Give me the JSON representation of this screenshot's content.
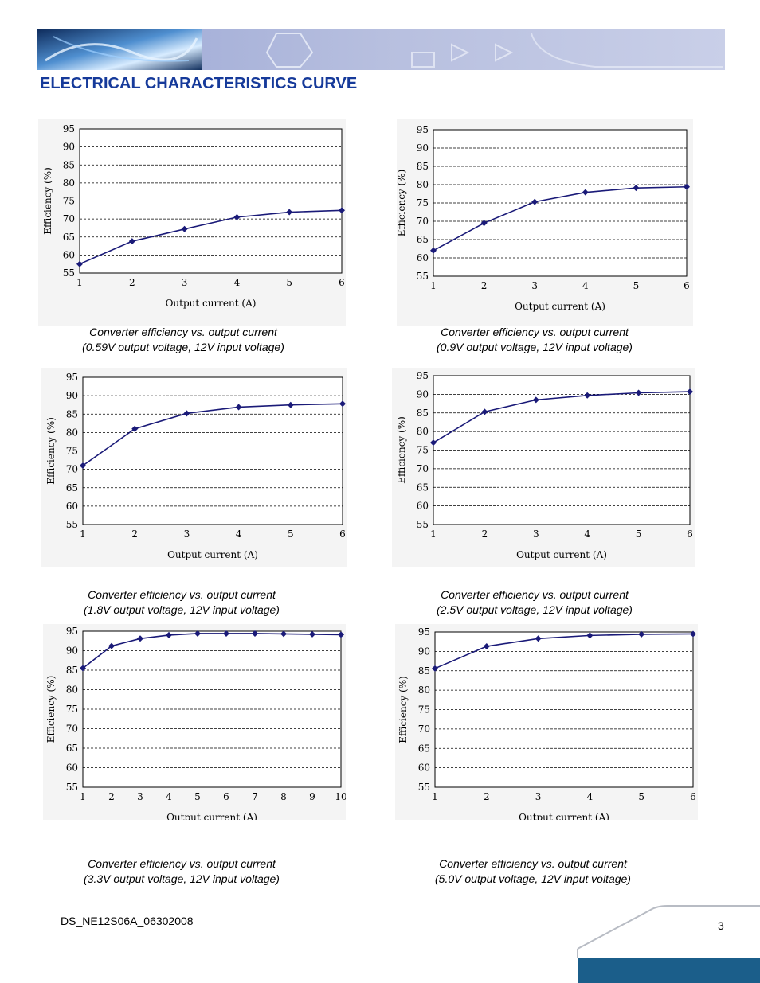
{
  "header": {
    "title": "ELECTRICAL CHARACTERISTICS CURVE"
  },
  "footer": {
    "doc_code": "DS_NE12S06A_06302008",
    "page_number": "3"
  },
  "colors": {
    "heading": "#163a9a",
    "series": "#1a1a78",
    "banner": "#aab4d8",
    "footer_bar": "#1b5e8a"
  },
  "chart_data": [
    {
      "type": "line",
      "caption_line1": "Converter efficiency vs. output current",
      "caption_line2": "(0.59V output voltage, 12V input voltage)",
      "xlabel": "Output current (A)",
      "ylabel": "Efficiency (%)",
      "xlim": [
        1,
        6
      ],
      "ylim": [
        55,
        95
      ],
      "x_ticks": [
        1,
        2,
        3,
        4,
        5,
        6
      ],
      "y_ticks": [
        55,
        60,
        65,
        70,
        75,
        80,
        85,
        90,
        95
      ],
      "grid": "horizontal dashed",
      "x": [
        1,
        2,
        3,
        4,
        5,
        6
      ],
      "series": [
        {
          "values": [
            57.5,
            63.8,
            67.2,
            70.5,
            71.9,
            72.4
          ]
        }
      ]
    },
    {
      "type": "line",
      "caption_line1": "Converter efficiency vs. output current",
      "caption_line2": "(0.9V output voltage, 12V input voltage)",
      "xlabel": "Output current (A)",
      "ylabel": "Efficiency (%)",
      "xlim": [
        1,
        6
      ],
      "ylim": [
        55,
        95
      ],
      "x_ticks": [
        1,
        2,
        3,
        4,
        5,
        6
      ],
      "y_ticks": [
        55,
        60,
        65,
        70,
        75,
        80,
        85,
        90,
        95
      ],
      "grid": "horizontal dashed",
      "x": [
        1,
        2,
        3,
        4,
        5,
        6
      ],
      "series": [
        {
          "values": [
            62,
            69.5,
            75.3,
            77.9,
            79.1,
            79.4
          ]
        }
      ]
    },
    {
      "type": "line",
      "caption_line1": "Converter efficiency vs. output current",
      "caption_line2": "(1.8V output voltage, 12V input voltage)",
      "xlabel": "Output current (A)",
      "ylabel": "Efficiency (%)",
      "xlim": [
        1,
        6
      ],
      "ylim": [
        55,
        95
      ],
      "x_ticks": [
        1,
        2,
        3,
        4,
        5,
        6
      ],
      "y_ticks": [
        55,
        60,
        65,
        70,
        75,
        80,
        85,
        90,
        95
      ],
      "grid": "horizontal dashed",
      "x": [
        1,
        2,
        3,
        4,
        5,
        6
      ],
      "series": [
        {
          "values": [
            71,
            81,
            85.2,
            86.9,
            87.5,
            87.8
          ]
        }
      ]
    },
    {
      "type": "line",
      "caption_line1": "Converter efficiency vs. output current",
      "caption_line2": "(2.5V output voltage, 12V input voltage)",
      "xlabel": "Output current (A)",
      "ylabel": "Efficiency (%)",
      "xlim": [
        1,
        6
      ],
      "ylim": [
        55,
        95
      ],
      "x_ticks": [
        1,
        2,
        3,
        4,
        5,
        6
      ],
      "y_ticks": [
        55,
        60,
        65,
        70,
        75,
        80,
        85,
        90,
        95
      ],
      "grid": "horizontal dashed",
      "x": [
        1,
        2,
        3,
        4,
        5,
        6
      ],
      "series": [
        {
          "values": [
            77,
            85.3,
            88.5,
            89.7,
            90.4,
            90.7
          ]
        }
      ]
    },
    {
      "type": "line",
      "caption_line1": "Converter efficiency vs. output current",
      "caption_line2": "(3.3V output voltage, 12V input voltage)",
      "xlabel": "Output current (A)",
      "ylabel": "Efficiency (%)",
      "xlim": [
        1,
        10
      ],
      "ylim": [
        55,
        95
      ],
      "x_ticks": [
        1,
        2,
        3,
        4,
        5,
        6,
        7,
        8,
        9,
        10
      ],
      "y_ticks": [
        55,
        60,
        65,
        70,
        75,
        80,
        85,
        90,
        95
      ],
      "grid": "horizontal dashed",
      "x": [
        1,
        2,
        3,
        4,
        5,
        6,
        7,
        8,
        9,
        10
      ],
      "series": [
        {
          "values": [
            85.5,
            91.2,
            93.1,
            94,
            94.4,
            94.4,
            94.4,
            94.3,
            94.2,
            94.1
          ]
        }
      ]
    },
    {
      "type": "line",
      "caption_line1": "Converter efficiency vs. output current",
      "caption_line2": "(5.0V output voltage, 12V input voltage)",
      "xlabel": "Output current (A)",
      "ylabel": "Efficiency (%)",
      "xlim": [
        1,
        6
      ],
      "ylim": [
        55,
        95
      ],
      "x_ticks": [
        1,
        2,
        3,
        4,
        5,
        6
      ],
      "y_ticks": [
        55,
        60,
        65,
        70,
        75,
        80,
        85,
        90,
        95
      ],
      "grid": "horizontal dashed",
      "x": [
        1,
        2,
        3,
        4,
        5,
        6
      ],
      "series": [
        {
          "values": [
            85.6,
            91.3,
            93.3,
            94.1,
            94.4,
            94.5
          ]
        }
      ]
    }
  ]
}
